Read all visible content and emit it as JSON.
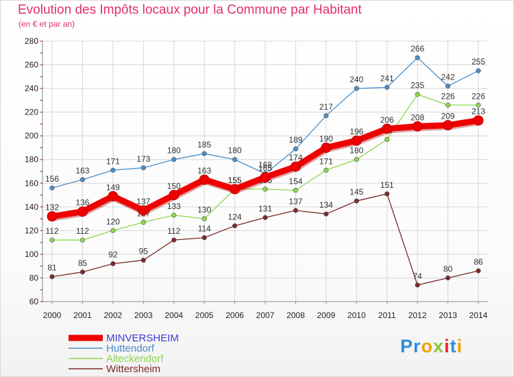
{
  "colors": {
    "title": "#e0306a",
    "grid": "#d6d6d6",
    "axis_marks": "#e8232a"
  },
  "logo": {
    "text": "Proxiti",
    "letters": [
      {
        "ch": "P",
        "color": "#2e8fd8"
      },
      {
        "ch": "r",
        "color": "#2e8fd8"
      },
      {
        "ch": "o",
        "color": "#f0a000"
      },
      {
        "ch": "x",
        "color": "#8cc63f"
      },
      {
        "ch": "i",
        "color": "#e8232a"
      },
      {
        "ch": "t",
        "color": "#2e8fd8"
      },
      {
        "ch": "i",
        "color": "#f0a000"
      }
    ]
  },
  "chart_data": {
    "type": "line",
    "title": "Evolution des Impôts locaux pour la Commune par Habitant",
    "subtitle": "(en € et par an)",
    "xlabel": "",
    "ylabel": "",
    "ylim": [
      60,
      280
    ],
    "yticks": [
      60,
      80,
      100,
      120,
      140,
      160,
      180,
      200,
      220,
      240,
      260,
      280
    ],
    "grid": true,
    "legend_position": "bottom-left",
    "categories": [
      "2000",
      "2001",
      "2002",
      "2003",
      "2004",
      "2005",
      "2006",
      "2007",
      "2008",
      "2009",
      "2010",
      "2011",
      "2012",
      "2013",
      "2014"
    ],
    "series": [
      {
        "name": "MINVERSHEIM",
        "color": "#ee0000",
        "highlight": true,
        "values": [
          132,
          136,
          149,
          137,
          150,
          163,
          155,
          165,
          174,
          190,
          196,
          206,
          208,
          209,
          213
        ]
      },
      {
        "name": "Huttendorf",
        "color": "#4a8ec8",
        "highlight": false,
        "values": [
          156,
          163,
          171,
          173,
          180,
          185,
          180,
          168,
          189,
          217,
          240,
          241,
          266,
          242,
          255
        ]
      },
      {
        "name": "Alteckendorf",
        "color": "#8ed64f",
        "highlight": false,
        "values": [
          112,
          112,
          120,
          127,
          133,
          130,
          155,
          155,
          154,
          171,
          180,
          197,
          235,
          226,
          226
        ]
      },
      {
        "name": "Wittersheim",
        "color": "#7a2a2a",
        "highlight": false,
        "values": [
          81,
          85,
          92,
          95,
          112,
          114,
          124,
          131,
          137,
          134,
          145,
          151,
          74,
          80,
          86
        ]
      }
    ]
  }
}
